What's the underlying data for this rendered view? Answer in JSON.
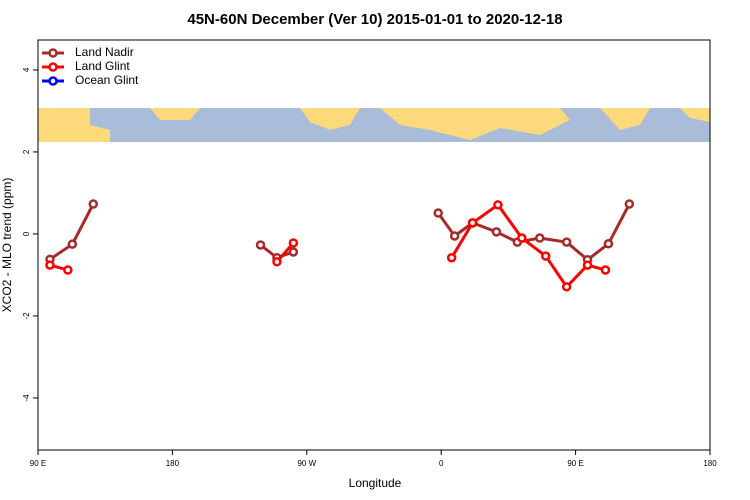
{
  "chart_data": {
    "type": "line",
    "title": "45N-60N December (Ver 10)   2015-01-01 to 2020-12-18",
    "xlabel": "Longitude",
    "ylabel": "XCO2 - MLO trend (ppm)",
    "xlim": [
      90,
      540
    ],
    "ylim": [
      -5.27,
      4.73
    ],
    "xticks": [
      {
        "value": 90,
        "label": "90 E"
      },
      180,
      {
        "value": 270,
        "label": "90 W"
      },
      {
        "value": 360,
        "label": "0"
      },
      {
        "value": 450,
        "label": "90 E"
      },
      {
        "value": 540,
        "label": "180"
      }
    ],
    "yticks": [
      -4,
      -2,
      0,
      2,
      4
    ],
    "legend": "top-left",
    "series": [
      {
        "name": "Land Nadir",
        "color": "#a52a2a",
        "x": [
          98,
          113,
          127,
          null,
          239,
          250,
          261,
          null,
          358,
          369,
          381,
          397,
          411,
          426,
          444,
          458,
          472,
          486
        ],
        "values": [
          -0.62,
          -0.25,
          0.73,
          null,
          -0.27,
          -0.58,
          -0.44,
          null,
          0.51,
          -0.05,
          0.27,
          0.05,
          -0.2,
          -0.1,
          -0.2,
          -0.63,
          -0.24,
          0.73
        ]
      },
      {
        "name": "Land Glint",
        "color": "#ff0000",
        "x": [
          98,
          110,
          null,
          250,
          261,
          null,
          367,
          381,
          398,
          414,
          430,
          444,
          458,
          470
        ],
        "values": [
          -0.76,
          -0.88,
          null,
          -0.68,
          -0.22,
          null,
          -0.58,
          0.27,
          0.71,
          -0.1,
          -0.54,
          -1.29,
          -0.76,
          -0.88
        ]
      },
      {
        "name": "Ocean Glint",
        "color": "#0000ff",
        "x": [],
        "values": []
      }
    ]
  }
}
